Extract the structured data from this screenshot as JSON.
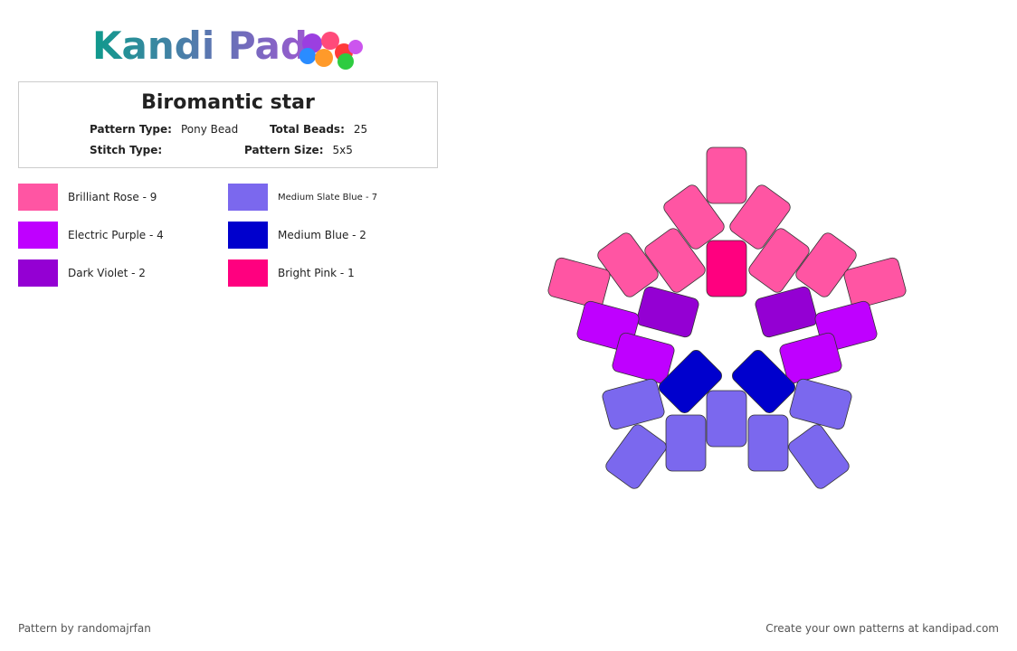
{
  "header": {
    "logo": "Kandi Pad"
  },
  "pattern": {
    "title": "Biromantic star",
    "fields": [
      {
        "label": "Pattern Type:",
        "value": "Pony Bead"
      },
      {
        "label": "Total Beads:",
        "value": "25"
      },
      {
        "label": "Stitch Type:"
      },
      {
        "label": "Pattern Size:",
        "value": "5x5"
      }
    ]
  },
  "legend": [
    {
      "name": "Brilliant Rose - 9",
      "color": "#FF55A3"
    },
    {
      "name": "Electric Purple - 4",
      "color": "#BF00FF"
    },
    {
      "name": "Dark Violet - 2",
      "color": "#9400D3"
    },
    {
      "name": "Medium Slate Blue - 7",
      "color": "#7B68EE"
    },
    {
      "name": "Medium Blue - 2",
      "color": "#0000CD"
    },
    {
      "name": "Bright Pink - 1",
      "color": "#FF007F"
    }
  ],
  "footer": {
    "credit": "Pattern by randomajrfan",
    "link": "Create your own patterns at kandipad.com"
  }
}
